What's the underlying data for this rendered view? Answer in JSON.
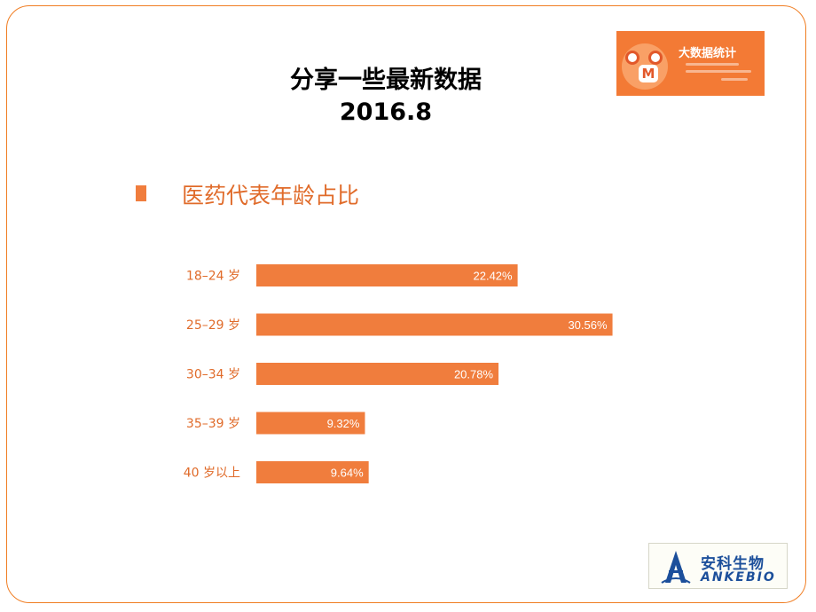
{
  "slide": {
    "title_line1": "分享一些最新数据",
    "title_line2": "2016.8",
    "section_title": "医药代表年龄占比"
  },
  "badge": {
    "title": "大数据统计"
  },
  "logo": {
    "cn": "安科生物",
    "en": "ANKEBIO"
  },
  "colors": {
    "accent": "#f07d3d",
    "frame": "#f07d22",
    "label_text": "#e06b2a"
  },
  "chart_data": {
    "type": "bar",
    "orientation": "horizontal",
    "categories": [
      "18–24 岁",
      "25–29 岁",
      "30–34 岁",
      "35–39 岁",
      "40 岁以上"
    ],
    "values": [
      22.42,
      30.56,
      20.78,
      9.32,
      9.64
    ],
    "value_labels": [
      "22.42%",
      "30.56%",
      "20.78%",
      "9.32%",
      "9.64%"
    ],
    "title": "医药代表年龄占比",
    "xlabel": "",
    "ylabel": "",
    "grid": false,
    "legend": false
  }
}
